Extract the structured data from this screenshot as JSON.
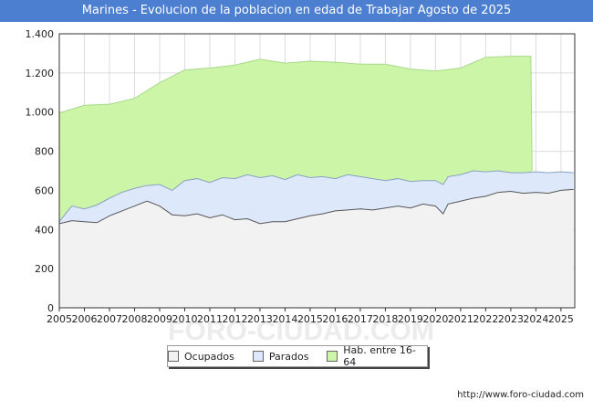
{
  "chart_data": {
    "type": "area",
    "title": "Marines - Evolucion de la poblacion en edad de Trabajar Agosto de 2025",
    "xlabel": "",
    "ylabel": "",
    "x_ticks": [
      "2005",
      "2006",
      "2007",
      "2008",
      "2009",
      "2010",
      "2011",
      "2012",
      "2013",
      "2014",
      "2015",
      "2016",
      "2017",
      "2018",
      "2019",
      "2020",
      "2021",
      "2022",
      "2023",
      "2024",
      "2025"
    ],
    "xlim": [
      2005,
      2025.55
    ],
    "ylim": [
      0,
      1400
    ],
    "y_ticks": [
      0,
      200,
      400,
      600,
      800,
      1000,
      1200,
      1400
    ],
    "y_tick_labels": [
      "0",
      "200",
      "400",
      "600",
      "800",
      "1.000",
      "1.200",
      "1.400"
    ],
    "grid": true,
    "legend_position": "bottom-center",
    "series": [
      {
        "name": "Ocupados",
        "color": "#f2f2f2",
        "stroke": "#555555",
        "x": [
          2005.0,
          2005.5,
          2006.0,
          2006.5,
          2007.0,
          2007.5,
          2008.0,
          2008.5,
          2009.0,
          2009.5,
          2010.0,
          2010.5,
          2011.0,
          2011.5,
          2012.0,
          2012.5,
          2013.0,
          2013.5,
          2014.0,
          2014.5,
          2015.0,
          2015.5,
          2016.0,
          2016.5,
          2017.0,
          2017.5,
          2018.0,
          2018.5,
          2019.0,
          2019.5,
          2020.0,
          2020.3,
          2020.5,
          2021.0,
          2021.5,
          2022.0,
          2022.5,
          2023.0,
          2023.5,
          2024.0,
          2024.5,
          2025.0,
          2025.5
        ],
        "values": [
          430,
          445,
          440,
          435,
          470,
          495,
          520,
          545,
          520,
          475,
          470,
          480,
          460,
          475,
          450,
          455,
          430,
          440,
          440,
          455,
          470,
          480,
          495,
          500,
          505,
          500,
          510,
          520,
          510,
          530,
          520,
          480,
          530,
          545,
          560,
          570,
          590,
          595,
          585,
          590,
          585,
          600,
          605
        ]
      },
      {
        "name": "Parados",
        "color": "#dde9fb",
        "stroke": "#8aa0c0",
        "x": [
          2005.0,
          2005.5,
          2006.0,
          2006.5,
          2007.0,
          2007.5,
          2008.0,
          2008.5,
          2009.0,
          2009.5,
          2010.0,
          2010.5,
          2011.0,
          2011.5,
          2012.0,
          2012.5,
          2013.0,
          2013.5,
          2014.0,
          2014.5,
          2015.0,
          2015.5,
          2016.0,
          2016.5,
          2017.0,
          2017.5,
          2018.0,
          2018.5,
          2019.0,
          2019.5,
          2020.0,
          2020.3,
          2020.5,
          2021.0,
          2021.5,
          2022.0,
          2022.5,
          2023.0,
          2023.5,
          2024.0,
          2024.5,
          2025.0,
          2025.5
        ],
        "values": [
          440,
          520,
          505,
          525,
          560,
          590,
          610,
          625,
          630,
          600,
          650,
          660,
          640,
          665,
          660,
          680,
          665,
          675,
          655,
          680,
          665,
          670,
          660,
          680,
          670,
          660,
          650,
          660,
          645,
          650,
          650,
          630,
          670,
          680,
          700,
          695,
          700,
          690,
          690,
          695,
          690,
          695,
          690
        ]
      },
      {
        "name": "Hab. entre 16-64",
        "color": "#ccf5a8",
        "stroke": "#a8d98a",
        "x": [
          2005.0,
          2006.0,
          2007.0,
          2008.0,
          2009.0,
          2010.0,
          2011.0,
          2012.0,
          2013.0,
          2014.0,
          2015.0,
          2016.0,
          2017.0,
          2018.0,
          2019.0,
          2020.0,
          2021.0,
          2022.0,
          2023.0,
          2023.8,
          2023.85
        ],
        "values": [
          995,
          1035,
          1040,
          1070,
          1150,
          1215,
          1225,
          1240,
          1270,
          1250,
          1260,
          1255,
          1245,
          1245,
          1220,
          1210,
          1225,
          1280,
          1285,
          1285,
          700
        ]
      }
    ],
    "source": "http://www.foro-ciudad.com",
    "watermark": "FORO-CIUDAD.COM"
  }
}
